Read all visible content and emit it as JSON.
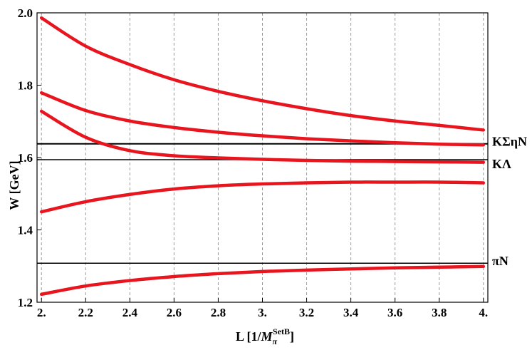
{
  "chart_data": {
    "type": "line",
    "title": "",
    "xlabel": "L [1/M_π^SetB]",
    "xlabel_parts": {
      "main": "L [1/",
      "symbol": "M",
      "sub": "π",
      "sup": "SetB",
      "close": "]"
    },
    "ylabel": "W [GeV]",
    "xlim": [
      1.98,
      4.02
    ],
    "ylim": [
      1.2,
      2.0
    ],
    "x_ticks": [
      2.0,
      2.2,
      2.4,
      2.6,
      2.8,
      3.0,
      3.2,
      3.4,
      3.6,
      3.8,
      4.0
    ],
    "x_tick_labels": [
      "2.",
      "2.2",
      "2.4",
      "2.6",
      "2.8",
      "3.",
      "3.2",
      "3.4",
      "3.6",
      "3.8",
      "4."
    ],
    "y_ticks": [
      1.2,
      1.4,
      1.6,
      1.8,
      2.0
    ],
    "y_tick_labels": [
      "1.2",
      "1.4",
      "1.6",
      "1.8",
      "2.0"
    ],
    "grid": "vertical dashed at x ticks",
    "series_color": "#e8141e",
    "threshold_color": "#000000",
    "thresholds": [
      {
        "label": "KΣηN",
        "value": 1.638
      },
      {
        "label": "KΛ",
        "value": 1.594
      },
      {
        "label": "πN",
        "value": 1.308
      }
    ],
    "x": [
      2.0,
      2.2,
      2.4,
      2.6,
      2.8,
      3.0,
      3.2,
      3.4,
      3.6,
      3.8,
      4.0
    ],
    "series": [
      {
        "values": [
          1.986,
          1.908,
          1.857,
          1.815,
          1.783,
          1.757,
          1.735,
          1.716,
          1.701,
          1.689,
          1.676
        ]
      },
      {
        "values": [
          1.779,
          1.73,
          1.701,
          1.683,
          1.67,
          1.66,
          1.652,
          1.646,
          1.641,
          1.637,
          1.635
        ]
      },
      {
        "values": [
          1.728,
          1.656,
          1.619,
          1.605,
          1.599,
          1.595,
          1.592,
          1.59,
          1.589,
          1.588,
          1.587
        ]
      },
      {
        "values": [
          1.45,
          1.478,
          1.498,
          1.513,
          1.522,
          1.527,
          1.53,
          1.532,
          1.532,
          1.532,
          1.53
        ]
      },
      {
        "values": [
          1.222,
          1.245,
          1.26,
          1.271,
          1.279,
          1.285,
          1.289,
          1.292,
          1.295,
          1.297,
          1.299
        ]
      }
    ]
  }
}
